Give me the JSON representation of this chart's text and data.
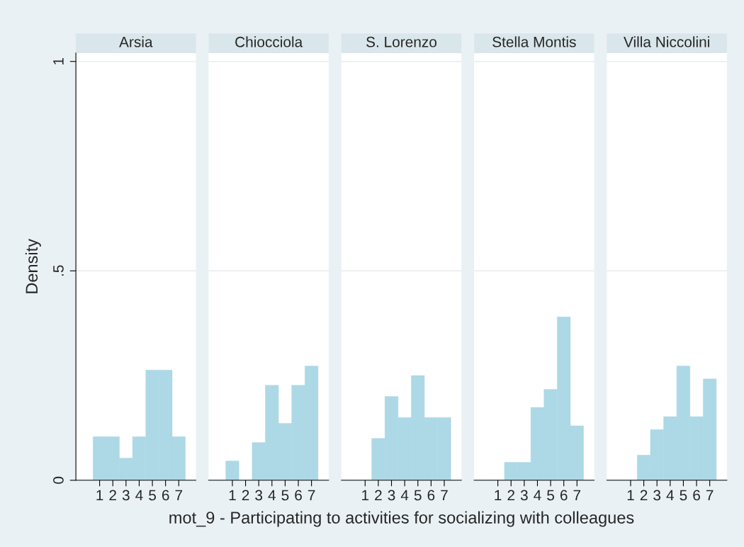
{
  "chart_data": [
    {
      "type": "histogram",
      "title": "Arsia",
      "ylabel": "Density",
      "bins": [
        0.5,
        1.5,
        2.5,
        3.5,
        4.5,
        5.5,
        6.5,
        7.5
      ],
      "values": [
        0.104,
        0.104,
        0.053,
        0.104,
        0.263,
        0.263,
        0.104
      ],
      "color": "#add8e6",
      "xlim": [
        -0.8,
        8.3
      ],
      "xticks": [
        1,
        2,
        3,
        4,
        5,
        6,
        7
      ],
      "ylim": [
        0,
        1.02
      ],
      "yticks": [
        {
          "value": 0,
          "label": "0"
        },
        {
          "value": 0.5,
          "label": ".5"
        },
        {
          "value": 1,
          "label": "1"
        }
      ],
      "grid": "y"
    },
    {
      "type": "histogram",
      "title": "Chiocciola",
      "bins": [
        0.5,
        1.5,
        2.5,
        3.5,
        4.5,
        5.5,
        6.5,
        7.5
      ],
      "values": [
        0.046,
        0,
        0.09,
        0.227,
        0.136,
        0.227,
        0.273
      ],
      "color": "#add8e6",
      "xlim": [
        -0.8,
        8.3
      ],
      "xticks": [
        1,
        2,
        3,
        4,
        5,
        6,
        7
      ],
      "ylim": [
        0,
        1.02
      ],
      "grid": "y",
      "tick_labels": "x"
    },
    {
      "type": "histogram",
      "title": "S. Lorenzo",
      "xlabel": "mot_9 - Participating to activities for socializing with colleagues",
      "bins": [
        0.5,
        1.5,
        2.5,
        3.5,
        4.5,
        5.5,
        6.5,
        7.5
      ],
      "values": [
        0,
        0.1,
        0.2,
        0.15,
        0.25,
        0.15,
        0.15
      ],
      "color": "#add8e6",
      "xlim": [
        -0.8,
        8.3
      ],
      "xticks": [
        1,
        2,
        3,
        4,
        5,
        6,
        7
      ],
      "ylim": [
        0,
        1.02
      ],
      "grid": "y",
      "tick_labels": "x"
    },
    {
      "type": "histogram",
      "title": "Stella Montis",
      "bins": [
        0.5,
        1.5,
        2.5,
        3.5,
        4.5,
        5.5,
        6.5,
        7.5
      ],
      "values": [
        0,
        0.043,
        0.043,
        0.174,
        0.217,
        0.39,
        0.13
      ],
      "color": "#add8e6",
      "xlim": [
        -0.8,
        8.3
      ],
      "xticks": [
        1,
        2,
        3,
        4,
        5,
        6,
        7
      ],
      "ylim": [
        0,
        1.02
      ],
      "grid": "y",
      "tick_labels": "x"
    },
    {
      "type": "histogram",
      "title": "Villa Niccolini",
      "bins": [
        0.5,
        1.5,
        2.5,
        3.5,
        4.5,
        5.5,
        6.5,
        7.5
      ],
      "values": [
        0,
        0.06,
        0.121,
        0.152,
        0.273,
        0.152,
        0.242
      ],
      "color": "#add8e6",
      "xlim": [
        -0.8,
        8.3
      ],
      "xticks": [
        1,
        2,
        3,
        4,
        5,
        6,
        7
      ],
      "ylim": [
        0,
        1.02
      ],
      "grid": "y",
      "tick_labels": "x"
    }
  ]
}
